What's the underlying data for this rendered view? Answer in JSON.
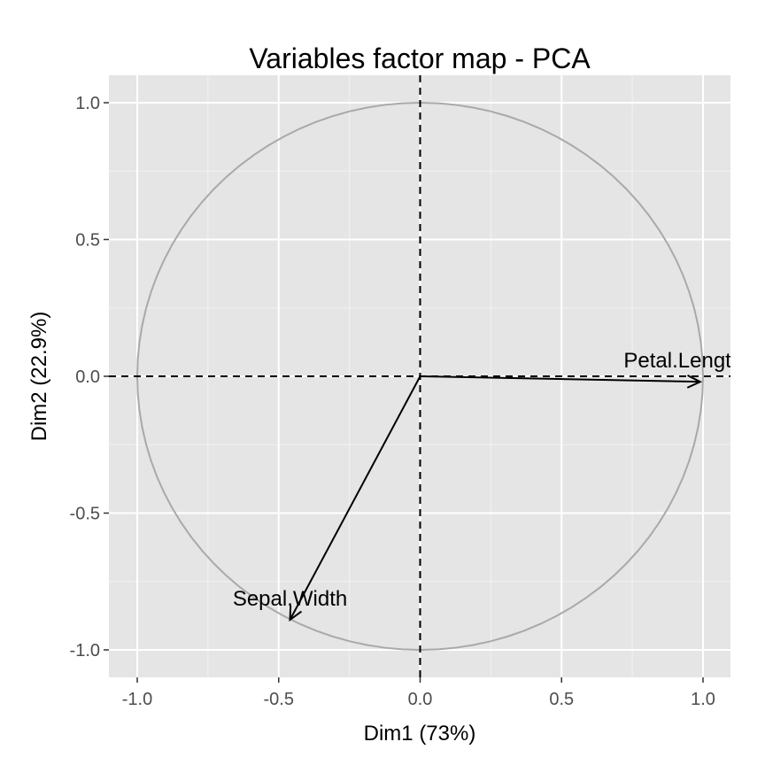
{
  "chart_data": {
    "type": "scatter",
    "title": "Variables factor map - PCA",
    "xlabel": "Dim1 (73%)",
    "ylabel": "Dim2 (22.9%)",
    "xlim": [
      -1.1,
      1.1
    ],
    "ylim": [
      -1.1,
      1.1
    ],
    "xticks": [
      -1.0,
      -0.5,
      0.0,
      0.5,
      1.0
    ],
    "yticks": [
      -1.0,
      -0.5,
      0.0,
      0.5,
      1.0
    ],
    "xtick_labels": [
      "-1.0",
      "-0.5",
      "0.0",
      "0.5",
      "1.0"
    ],
    "ytick_labels": [
      "-1.0",
      "-0.5",
      "0.0",
      "0.5",
      "1.0"
    ],
    "grid": true,
    "unit_circle": true,
    "reference_lines": {
      "x": 0,
      "y": 0,
      "style": "dashed"
    },
    "arrows": [
      {
        "name": "Petal.Length",
        "x": 0.99,
        "y": -0.02
      },
      {
        "name": "Sepal.Width",
        "x": -0.46,
        "y": -0.89
      }
    ],
    "colors": {
      "panel": "#E5E5E5",
      "grid_major": "#FFFFFF",
      "grid_minor": "#F2F2F2",
      "circle": "#A9A9A9",
      "arrow": "#000000",
      "tick_text": "#4D4D4D"
    }
  }
}
